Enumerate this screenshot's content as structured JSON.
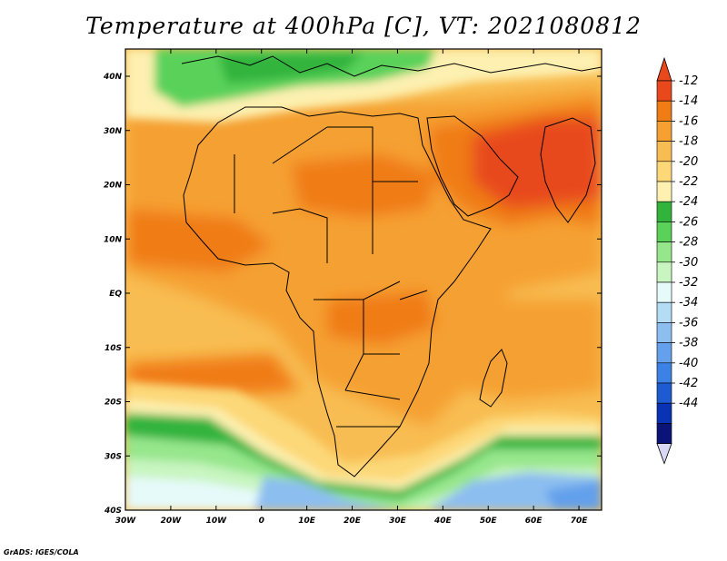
{
  "title": "Temperature at 400hPa [C], VT: 2021080812",
  "credit": "GrADS: IGES/COLA",
  "map": {
    "lon_ticks": [
      "30W",
      "20W",
      "10W",
      "0",
      "10E",
      "20E",
      "30E",
      "40E",
      "50E",
      "60E",
      "70E"
    ],
    "lat_ticks": [
      "40N",
      "30N",
      "20N",
      "10N",
      "EQ",
      "10S",
      "20S",
      "30S",
      "40S"
    ],
    "lon_range": [
      -30,
      75
    ],
    "lat_range": [
      -40,
      45
    ]
  },
  "colorbar": {
    "labels": [
      "-12",
      "-14",
      "-16",
      "-18",
      "-20",
      "-22",
      "-24",
      "-26",
      "-28",
      "-30",
      "-32",
      "-34",
      "-36",
      "-38",
      "-40",
      "-42",
      "-44"
    ],
    "colors": [
      "#e8481c",
      "#f07c16",
      "#f5a030",
      "#f8bd52",
      "#fcd878",
      "#fdf0b0",
      "#32b43c",
      "#5ad25a",
      "#96e68c",
      "#c8f5c0",
      "#e6fafa",
      "#b4dcf5",
      "#8cbef0",
      "#64a0eb",
      "#3c82e6",
      "#1e5ad2",
      "#0a32b4",
      "#0a1478"
    ],
    "top_arrow_color": "#e8481c",
    "bottom_arrow_color": "#d8d8f5"
  }
}
